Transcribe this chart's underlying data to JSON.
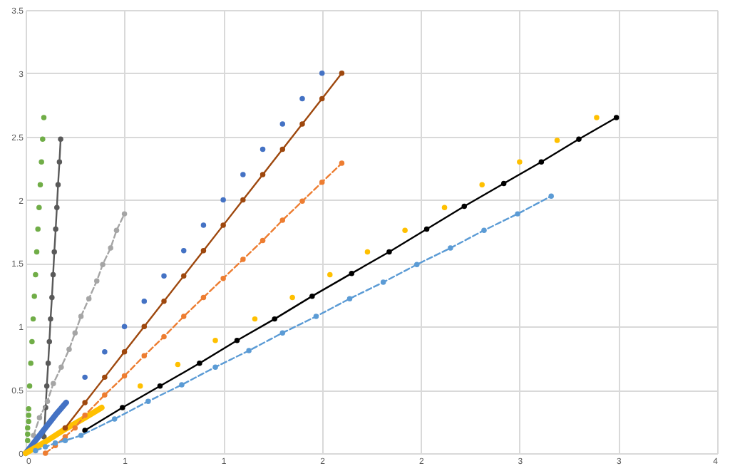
{
  "chart_data": {
    "type": "scatter",
    "marker": "circle",
    "grid": true,
    "xlim": [
      0,
      3.5
    ],
    "xticks": [
      0,
      {
        "value": 0.5,
        "label": "1"
      },
      1,
      {
        "value": 1.5,
        "label": "2"
      },
      2,
      {
        "value": 2.5,
        "label": "3"
      },
      3,
      {
        "value": 3.5,
        "label": "4"
      }
    ],
    "ylim": [
      0,
      3.5
    ],
    "yticks": [
      0,
      0.5,
      1,
      1.5,
      2,
      2.5,
      3,
      3.5
    ],
    "series": [
      {
        "color": "#70ad47",
        "x": [
          0.01,
          0.01,
          0.01,
          0.015,
          0.015,
          0.015,
          0.02,
          0.026,
          0.032,
          0.038,
          0.044,
          0.05,
          0.056,
          0.062,
          0.068,
          0.074,
          0.08,
          0.086,
          0.092
        ],
        "values": [
          0.1,
          0.15,
          0.2,
          0.25,
          0.3,
          0.35,
          0.53,
          0.71,
          0.88,
          1.06,
          1.24,
          1.41,
          1.59,
          1.77,
          1.94,
          2.12,
          2.3,
          2.48,
          2.65
        ]
      },
      {
        "type": "line",
        "line_style": "solid",
        "color": "#595959",
        "x": [
          0.093,
          0.101,
          0.107,
          0.114,
          0.12,
          0.126,
          0.133,
          0.139,
          0.145,
          0.152,
          0.158,
          0.164,
          0.171,
          0.177
        ],
        "values": [
          0.13,
          0.36,
          0.53,
          0.71,
          0.88,
          1.06,
          1.23,
          1.41,
          1.59,
          1.77,
          1.94,
          2.12,
          2.3,
          2.48
        ]
      },
      {
        "type": "line",
        "line_style": "dashed",
        "color": "#a5a5a5",
        "x": [
          0.04,
          0.07,
          0.11,
          0.14,
          0.18,
          0.22,
          0.25,
          0.28,
          0.32,
          0.36,
          0.39,
          0.43,
          0.46,
          0.5
        ],
        "values": [
          0.14,
          0.28,
          0.41,
          0.55,
          0.68,
          0.82,
          0.95,
          1.08,
          1.22,
          1.36,
          1.49,
          1.62,
          1.76,
          1.89
        ]
      },
      {
        "type": "line",
        "marker": "none",
        "color": "#4472c4",
        "x": [
          0,
          0.05,
          0.1,
          0.15,
          0.205
        ],
        "values": [
          0,
          0.1,
          0.2,
          0.3,
          0.4
        ]
      },
      {
        "type": "line",
        "marker": "none",
        "color": "#ffc000",
        "x": [
          0,
          0.1,
          0.2,
          0.3,
          0.385
        ],
        "values": [
          0,
          0.09,
          0.19,
          0.28,
          0.36
        ]
      },
      {
        "color": "#4472c4",
        "x": [
          0.3,
          0.4,
          0.5,
          0.6,
          0.7,
          0.8,
          0.9,
          1.0,
          1.1,
          1.2,
          1.3,
          1.4,
          1.5
        ],
        "values": [
          0.6,
          0.8,
          1.0,
          1.2,
          1.4,
          1.6,
          1.8,
          2.0,
          2.2,
          2.4,
          2.6,
          2.8,
          3.0
        ]
      },
      {
        "type": "line",
        "line_style": "solid",
        "color": "#9e480e",
        "x": [
          0.2,
          0.3,
          0.4,
          0.5,
          0.6,
          0.7,
          0.8,
          0.9,
          1.0,
          1.1,
          1.2,
          1.3,
          1.4,
          1.5,
          1.6
        ],
        "values": [
          0.2,
          0.4,
          0.6,
          0.8,
          1.0,
          1.2,
          1.4,
          1.6,
          1.8,
          2.0,
          2.2,
          2.4,
          2.6,
          2.8,
          3.0
        ]
      },
      {
        "type": "line",
        "line_style": "dashed",
        "color": "#ed7d31",
        "x": [
          0.1,
          0.15,
          0.2,
          0.25,
          0.3,
          0.4,
          0.5,
          0.6,
          0.7,
          0.8,
          0.9,
          1.0,
          1.1,
          1.2,
          1.3,
          1.4,
          1.5,
          1.6
        ],
        "values": [
          0.0,
          0.06,
          0.13,
          0.2,
          0.3,
          0.46,
          0.61,
          0.77,
          0.92,
          1.08,
          1.23,
          1.38,
          1.53,
          1.68,
          1.84,
          1.99,
          2.14,
          2.29
        ]
      },
      {
        "color": "#ffc000",
        "x": [
          0.58,
          0.77,
          0.96,
          1.16,
          1.35,
          1.54,
          1.73,
          1.92,
          2.12,
          2.31,
          2.5,
          2.69,
          2.89
        ],
        "values": [
          0.53,
          0.7,
          0.89,
          1.06,
          1.23,
          1.41,
          1.59,
          1.76,
          1.94,
          2.12,
          2.3,
          2.47,
          2.65
        ]
      },
      {
        "type": "line",
        "line_style": "solid",
        "color": "#000000",
        "x": [
          0.3,
          0.49,
          0.68,
          0.88,
          1.07,
          1.26,
          1.45,
          1.65,
          1.84,
          2.03,
          2.22,
          2.42,
          2.61,
          2.8,
          2.99
        ],
        "values": [
          0.18,
          0.36,
          0.53,
          0.71,
          0.89,
          1.06,
          1.24,
          1.42,
          1.59,
          1.77,
          1.95,
          2.13,
          2.3,
          2.48,
          2.65
        ]
      },
      {
        "type": "line",
        "line_style": "dashed",
        "color": "#5b9bd5",
        "x": [
          0.05,
          0.1,
          0.15,
          0.2,
          0.28,
          0.45,
          0.62,
          0.79,
          0.96,
          1.13,
          1.3,
          1.47,
          1.64,
          1.81,
          1.98,
          2.15,
          2.32,
          2.49,
          2.66
        ],
        "values": [
          0.02,
          0.05,
          0.08,
          0.1,
          0.14,
          0.27,
          0.41,
          0.54,
          0.68,
          0.81,
          0.95,
          1.08,
          1.22,
          1.35,
          1.49,
          1.62,
          1.76,
          1.89,
          2.03
        ]
      }
    ]
  }
}
